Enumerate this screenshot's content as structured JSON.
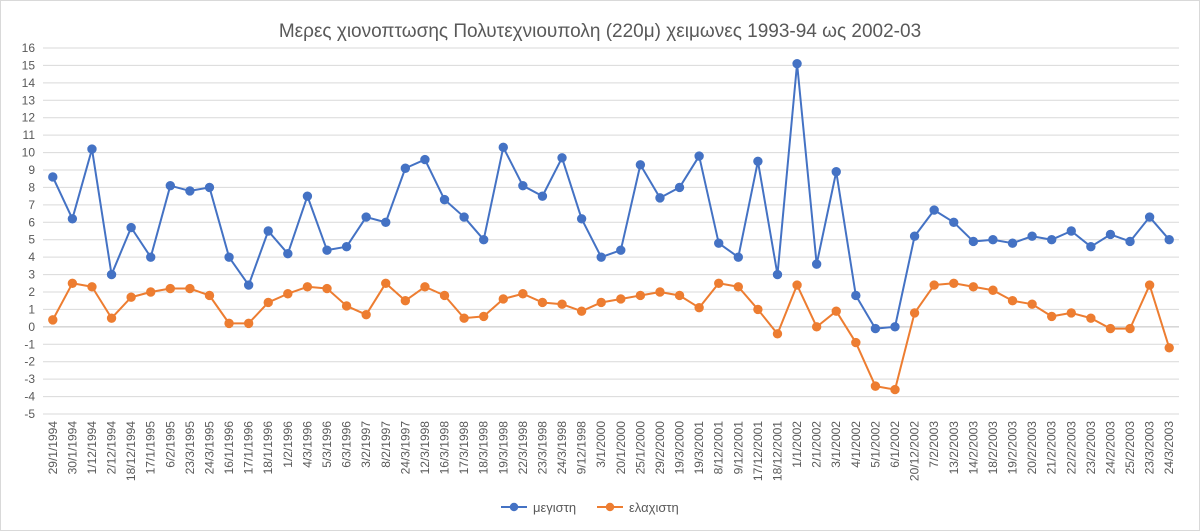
{
  "chart_data": {
    "type": "line",
    "title": "Μερες χιονοπτωσης Πολυτεχνιουπολη (220μ) χειμωνες 1993-94 ως 2002-03",
    "xlabel": "",
    "ylabel": "",
    "ylim": [
      -5,
      16
    ],
    "ytick_step": 1,
    "grid": true,
    "legend_position": "bottom",
    "categories": [
      "29/1/1994",
      "30/1/1994",
      "1/12/1994",
      "2/12/1994",
      "18/12/1994",
      "17/1/1995",
      "6/2/1995",
      "23/3/1995",
      "24/3/1995",
      "16/1/1996",
      "17/1/1996",
      "18/1/1996",
      "1/2/1996",
      "4/3/1996",
      "5/3/1996",
      "6/3/1996",
      "3/2/1997",
      "8/2/1997",
      "24/3/1997",
      "12/3/1998",
      "16/3/1998",
      "17/3/1998",
      "18/3/1998",
      "19/3/1998",
      "22/3/1998",
      "23/3/1998",
      "24/3/1998",
      "9/12/1998",
      "3/1/2000",
      "20/1/2000",
      "25/1/2000",
      "29/2/2000",
      "19/3/2000",
      "19/3/2001",
      "8/12/2001",
      "9/12/2001",
      "17/12/2001",
      "18/12/2001",
      "1/1/2002",
      "2/1/2002",
      "3/1/2002",
      "4/1/2002",
      "5/1/2002",
      "6/1/2002",
      "20/12/2002",
      "7/2/2003",
      "13/2/2003",
      "14/2/2003",
      "18/2/2003",
      "19/2/2003",
      "20/2/2003",
      "21/2/2003",
      "22/2/2003",
      "23/2/2003",
      "24/2/2003",
      "25/2/2003",
      "23/3/2003",
      "24/3/2003"
    ],
    "series": [
      {
        "name": "μεγιστη",
        "color": "#4472c4",
        "values": [
          8.6,
          6.2,
          10.2,
          3.0,
          5.7,
          4.0,
          8.1,
          7.8,
          8.0,
          4.0,
          2.4,
          5.5,
          4.2,
          7.5,
          4.4,
          4.6,
          6.3,
          6.0,
          9.1,
          9.6,
          7.3,
          6.3,
          5.0,
          10.3,
          8.1,
          7.5,
          9.7,
          6.2,
          4.0,
          4.4,
          9.3,
          7.4,
          8.0,
          9.8,
          4.8,
          4.0,
          9.5,
          3.0,
          15.1,
          3.6,
          8.9,
          1.8,
          -0.1,
          0.0,
          5.2,
          6.7,
          6.0,
          4.9,
          5.0,
          4.8,
          5.2,
          5.0,
          5.5,
          4.6,
          5.3,
          4.9,
          6.3,
          5.0
        ]
      },
      {
        "name": "ελαχιστη",
        "color": "#ed7d31",
        "values": [
          0.4,
          2.5,
          2.3,
          0.5,
          1.7,
          2.0,
          2.2,
          2.2,
          1.8,
          0.2,
          0.2,
          1.4,
          1.9,
          2.3,
          2.2,
          1.2,
          0.7,
          2.5,
          1.5,
          2.3,
          1.8,
          0.5,
          0.6,
          1.6,
          1.9,
          1.4,
          1.3,
          0.9,
          1.4,
          1.6,
          1.8,
          2.0,
          1.8,
          1.1,
          2.5,
          2.3,
          1.0,
          -0.4,
          2.4,
          0.0,
          0.9,
          -0.9,
          -3.4,
          -3.6,
          0.8,
          2.4,
          2.5,
          2.3,
          2.1,
          1.5,
          1.3,
          0.6,
          0.8,
          0.5,
          -0.1,
          -0.1,
          2.4,
          -1.2
        ]
      }
    ]
  }
}
